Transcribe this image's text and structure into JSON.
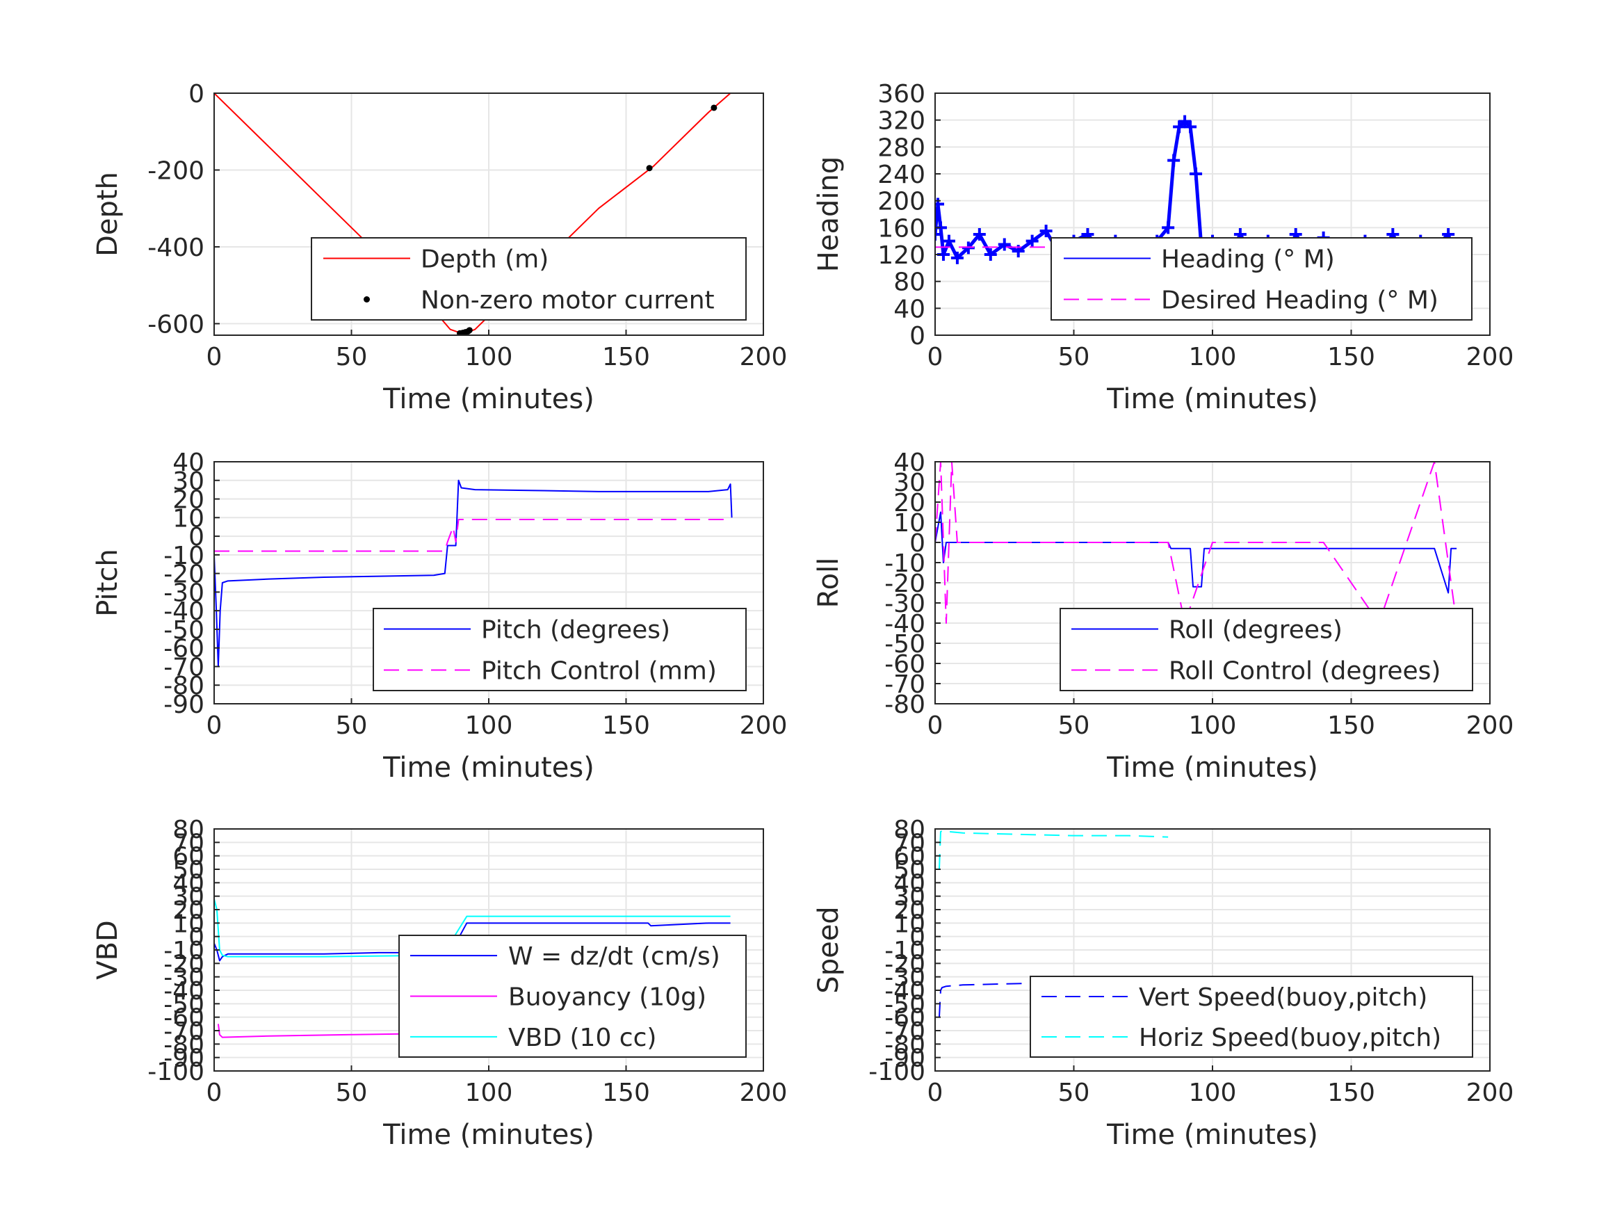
{
  "figure": {
    "background": "#ffffff",
    "grid": true,
    "colors": {
      "red": "#ff0000",
      "blue": "#0000ff",
      "magenta": "#ff00ff",
      "cyan": "#00ffff",
      "black": "#000000"
    }
  },
  "chart_data": [
    {
      "id": "depth",
      "type": "line",
      "xlabel": "Time (minutes)",
      "ylabel": "Depth",
      "xlim": [
        0,
        200
      ],
      "ylim": [
        -630,
        0
      ],
      "xticks": [
        0,
        50,
        100,
        150,
        200
      ],
      "yticks": [
        0,
        -200,
        -400,
        -600
      ],
      "legend_position": "bottom-right",
      "series": [
        {
          "name": "Depth (m)",
          "color": "#ff0000",
          "style": "solid",
          "x": [
            0,
            20,
            40,
            60,
            80,
            86,
            90,
            92,
            95,
            100,
            120,
            140,
            160,
            180,
            188
          ],
          "y": [
            0,
            -140,
            -280,
            -420,
            -565,
            -615,
            -625,
            -623,
            -615,
            -580,
            -440,
            -300,
            -190,
            -50,
            0
          ]
        },
        {
          "name": "Non-zero motor current",
          "color": "#000000",
          "style": "dots",
          "x": [
            89.5,
            90.5,
            91.5,
            92.5,
            93.0,
            158.5,
            182
          ],
          "y": [
            -625,
            -624,
            -622,
            -620,
            -617,
            -195,
            -38
          ]
        }
      ]
    },
    {
      "id": "heading",
      "type": "line",
      "xlabel": "Time (minutes)",
      "ylabel": "Heading",
      "xlim": [
        0,
        200
      ],
      "ylim": [
        0,
        360
      ],
      "xticks": [
        0,
        50,
        100,
        150,
        200
      ],
      "yticks": [
        0,
        40,
        80,
        120,
        160,
        200,
        240,
        280,
        320,
        360
      ],
      "legend_position": "bottom-right",
      "series": [
        {
          "name": "Heading (° M)",
          "color": "#0000ff",
          "style": "plus",
          "x": [
            0,
            1,
            2,
            3,
            5,
            8,
            12,
            16,
            20,
            25,
            30,
            35,
            40,
            45,
            50,
            55,
            60,
            65,
            70,
            75,
            80,
            84,
            86,
            88,
            90,
            92,
            94,
            96,
            98,
            100,
            105,
            110,
            115,
            120,
            125,
            130,
            135,
            140,
            145,
            150,
            155,
            160,
            165,
            170,
            175,
            180,
            185,
            188
          ],
          "y": [
            150,
            195,
            160,
            120,
            140,
            115,
            130,
            150,
            120,
            135,
            125,
            140,
            155,
            120,
            140,
            150,
            125,
            140,
            135,
            130,
            140,
            160,
            260,
            310,
            318,
            310,
            240,
            130,
            120,
            140,
            110,
            150,
            115,
            140,
            100,
            150,
            120,
            145,
            130,
            100,
            140,
            120,
            150,
            110,
            140,
            130,
            150,
            110
          ]
        },
        {
          "name": "Desired Heading (° M)",
          "color": "#ff00ff",
          "style": "dashed",
          "x": [
            0,
            188
          ],
          "y": [
            131,
            131
          ]
        }
      ]
    },
    {
      "id": "pitch",
      "type": "line",
      "xlabel": "Time (minutes)",
      "ylabel": "Pitch",
      "xlim": [
        0,
        200
      ],
      "ylim": [
        -90,
        40
      ],
      "xticks": [
        0,
        50,
        100,
        150,
        200
      ],
      "yticks": [
        40,
        30,
        20,
        10,
        0,
        -10,
        -20,
        -30,
        -40,
        -50,
        -60,
        -70,
        -80,
        -90
      ],
      "legend_position": "bottom-right",
      "series": [
        {
          "name": "Pitch (degrees)",
          "color": "#0000ff",
          "style": "solid",
          "x": [
            0,
            0.8,
            1.5,
            2.2,
            3,
            5,
            20,
            40,
            60,
            80,
            84,
            85,
            88,
            89,
            90,
            95,
            120,
            140,
            160,
            180,
            187,
            188,
            188.5
          ],
          "y": [
            -10,
            -40,
            -70,
            -40,
            -25,
            -24,
            -23,
            -22,
            -21.5,
            -21,
            -20,
            -5,
            -5,
            30,
            26,
            25,
            24.5,
            24,
            24,
            24,
            25,
            28,
            10
          ]
        },
        {
          "name": "Pitch Control (mm)",
          "color": "#ff00ff",
          "style": "dashed",
          "x": [
            0,
            84,
            85,
            87,
            88,
            89,
            90,
            188
          ],
          "y": [
            -8,
            -8,
            -3,
            5,
            -3,
            9,
            9,
            9
          ]
        }
      ]
    },
    {
      "id": "roll",
      "type": "line",
      "xlabel": "Time (minutes)",
      "ylabel": "Roll",
      "xlim": [
        0,
        200
      ],
      "ylim": [
        -80,
        40
      ],
      "xticks": [
        0,
        50,
        100,
        150,
        200
      ],
      "yticks": [
        40,
        30,
        20,
        10,
        0,
        -10,
        -20,
        -30,
        -40,
        -50,
        -60,
        -70,
        -80
      ],
      "legend_position": "bottom-right",
      "series": [
        {
          "name": "Roll (degrees)",
          "color": "#0000ff",
          "style": "solid",
          "x": [
            0,
            2,
            3,
            4,
            6,
            10,
            20,
            30,
            40,
            50,
            60,
            70,
            80,
            84,
            85,
            92,
            93,
            96,
            97,
            110,
            120,
            130,
            140,
            150,
            160,
            170,
            180,
            185,
            186,
            188
          ],
          "y": [
            0,
            15,
            -10,
            0,
            0,
            0,
            0,
            0,
            0,
            0,
            0,
            0,
            0,
            0,
            -3,
            -3,
            -22,
            -22,
            -3,
            -3,
            -3,
            -3,
            -3,
            -3,
            -3,
            -3,
            -3,
            -25,
            -3,
            -3
          ]
        },
        {
          "name": "Roll Control (degrees)",
          "color": "#ff00ff",
          "style": "dashed",
          "x": [
            0,
            2,
            4,
            6,
            8,
            84,
            90,
            100,
            120,
            140,
            160,
            180,
            188
          ],
          "y": [
            0,
            40,
            -40,
            40,
            0,
            0,
            -40,
            0,
            0,
            0,
            -40,
            40,
            -40
          ]
        }
      ]
    },
    {
      "id": "vbd",
      "type": "line",
      "xlabel": "Time (minutes)",
      "ylabel": "VBD",
      "xlim": [
        0,
        200
      ],
      "ylim": [
        -100,
        80
      ],
      "xticks": [
        0,
        50,
        100,
        150,
        200
      ],
      "yticks": [
        80,
        70,
        60,
        50,
        40,
        30,
        20,
        10,
        0,
        -10,
        -20,
        -30,
        -40,
        -50,
        -60,
        -70,
        -80,
        -90,
        -100
      ],
      "legend_position": "bottom-right",
      "series": [
        {
          "name": "W = dz/dt (cm/s)",
          "color": "#0000ff",
          "style": "solid",
          "x": [
            0,
            1,
            2,
            3,
            5,
            20,
            40,
            60,
            80,
            84,
            85,
            88,
            92,
            94,
            120,
            150,
            158,
            159,
            180,
            188
          ],
          "y": [
            -5,
            -10,
            -18,
            -15,
            -13,
            -13,
            -13,
            -12,
            -12,
            -12,
            -10,
            -5,
            10,
            10,
            10,
            10,
            10,
            8,
            10,
            10
          ]
        },
        {
          "name": "Buoyancy (10g)",
          "color": "#ff00ff",
          "style": "solid",
          "x": [
            1.5,
            2,
            3,
            20,
            50,
            84
          ],
          "y": [
            -65,
            -73,
            -75,
            -74,
            -73,
            -72
          ]
        },
        {
          "name": "VBD (10 cc)",
          "color": "#00ffff",
          "style": "solid",
          "x": [
            0,
            1,
            2,
            3,
            5,
            40,
            80,
            84,
            85,
            92,
            94,
            120,
            150,
            188
          ],
          "y": [
            28,
            20,
            -10,
            -14,
            -15,
            -15,
            -14,
            -14,
            -8,
            15,
            15,
            15,
            15,
            15
          ]
        }
      ]
    },
    {
      "id": "speed",
      "type": "line",
      "xlabel": "Time (minutes)",
      "ylabel": "Speed",
      "xlim": [
        0,
        200
      ],
      "ylim": [
        -100,
        80
      ],
      "xticks": [
        0,
        50,
        100,
        150,
        200
      ],
      "yticks": [
        80,
        70,
        60,
        50,
        40,
        30,
        20,
        10,
        0,
        -10,
        -20,
        -30,
        -40,
        -50,
        -60,
        -70,
        -80,
        -90,
        -100
      ],
      "legend_position": "bottom-right",
      "series": [
        {
          "name": "Vert Speed(buoy,pitch)",
          "color": "#0000ff",
          "style": "dashed",
          "x": [
            1.5,
            2,
            2.5,
            4,
            10,
            30,
            50,
            70,
            84
          ],
          "y": [
            -60,
            -40,
            -38,
            -37,
            -36,
            -35,
            -34,
            -34,
            -33
          ]
        },
        {
          "name": "Horiz Speed(buoy,pitch)",
          "color": "#00ffff",
          "style": "dashed",
          "x": [
            1.5,
            2,
            3,
            5,
            10,
            30,
            50,
            70,
            84
          ],
          "y": [
            50,
            78,
            79,
            78,
            77,
            76,
            75,
            75,
            74
          ]
        }
      ]
    }
  ]
}
